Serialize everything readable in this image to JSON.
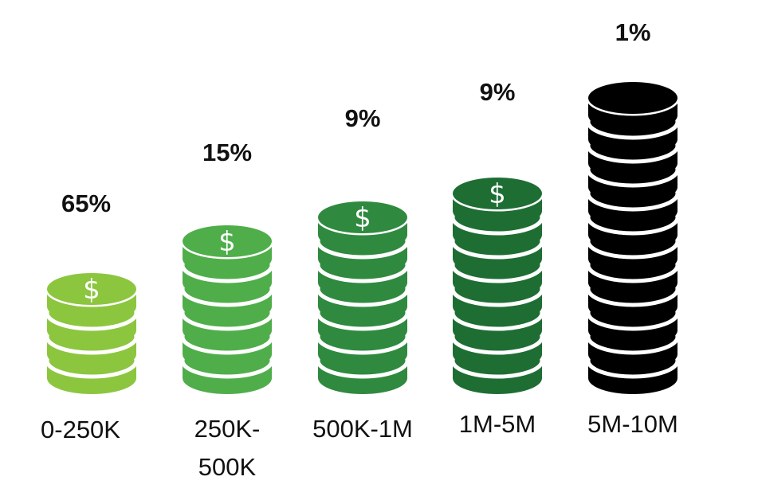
{
  "chart_data": {
    "type": "bar",
    "categories": [
      "0-250K",
      "250K-500K",
      "500K-1M",
      "1M-5M",
      "5M-10M"
    ],
    "category_lines": [
      [
        "0-250K"
      ],
      [
        "250K-",
        "500K"
      ],
      [
        "500K-1M"
      ],
      [
        "1M-5M"
      ],
      [
        "5M-10M"
      ]
    ],
    "values": [
      65,
      15,
      9,
      9,
      1
    ],
    "value_labels": [
      "65%",
      "15%",
      "9%",
      "9%",
      "1%"
    ],
    "bar_colors": [
      "#8cc63f",
      "#4fae4a",
      "#2f8a3f",
      "#1e6e34",
      "#000000"
    ],
    "stack_heights": [
      4,
      6,
      7,
      8,
      12
    ],
    "top_icon": "dollar-sign-icon",
    "icon_glyph": "$",
    "xlabel": "",
    "ylabel": ""
  }
}
